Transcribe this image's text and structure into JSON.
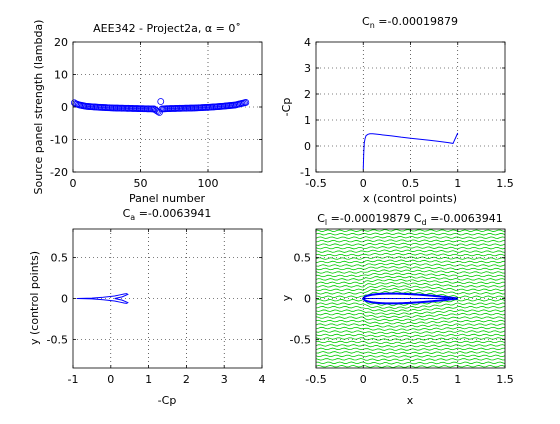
{
  "chart_data": [
    {
      "type": "scatter",
      "title": "AEE342 - Project2a, α = 0˚",
      "xlabel": "Panel number",
      "ylabel": "Source panel strength (lambda)",
      "xlim": [
        0,
        140
      ],
      "ylim": [
        -20,
        20
      ],
      "xticks": [
        "0",
        "50",
        "100"
      ],
      "yticks": [
        "-20",
        "-10",
        "0",
        "10",
        "20"
      ],
      "grid": true,
      "marker": "circle",
      "color": "#0000ff",
      "panels": 128,
      "series": [
        {
          "x": [
            1,
            2,
            5,
            10,
            20,
            30,
            40,
            50,
            60,
            64,
            65,
            66,
            70,
            80,
            90,
            100,
            110,
            120,
            124,
            127,
            128
          ],
          "y": [
            1.3,
            1.0,
            0.6,
            0.2,
            -0.1,
            -0.3,
            -0.4,
            -0.5,
            -0.6,
            -1.7,
            1.7,
            -0.6,
            -0.5,
            -0.4,
            -0.3,
            -0.1,
            0.2,
            0.6,
            1.0,
            1.3,
            1.4
          ]
        }
      ]
    },
    {
      "type": "line",
      "title": "C_n =-0.00019879",
      "title_main": "C",
      "title_sub": "n",
      "title_rest": " =-0.00019879",
      "xlabel": "x (control points)",
      "ylabel": "-Cp",
      "xlim": [
        -0.5,
        1.5
      ],
      "ylim": [
        -1,
        4
      ],
      "xticks": [
        "-0.5",
        "0",
        "0.5",
        "1",
        "1.5"
      ],
      "yticks": [
        "-1",
        "0",
        "1",
        "2",
        "3",
        "4"
      ],
      "grid": true,
      "color": "#0000ff",
      "series": [
        {
          "x": [
            1.0,
            0.95,
            0.9,
            0.8,
            0.7,
            0.6,
            0.5,
            0.4,
            0.3,
            0.2,
            0.15,
            0.1,
            0.07,
            0.05,
            0.03,
            0.02,
            0.01,
            0.005,
            0.0
          ],
          "y": [
            0.5,
            0.1,
            0.13,
            0.18,
            0.22,
            0.26,
            0.3,
            0.34,
            0.39,
            0.43,
            0.45,
            0.47,
            0.47,
            0.45,
            0.4,
            0.3,
            0.1,
            -0.3,
            -0.9
          ]
        }
      ]
    },
    {
      "type": "line",
      "title": "C_a =-0.0063941",
      "title_main": "C",
      "title_sub": "a",
      "title_rest": " =-0.0063941",
      "xlabel": "-Cp",
      "ylabel": "y (control points)",
      "xlim": [
        -1,
        4
      ],
      "ylim": [
        -0.85,
        0.85
      ],
      "xticks": [
        "-1",
        "0",
        "1",
        "2",
        "3",
        "4"
      ],
      "yticks": [
        "-0.5",
        "0",
        "0.5"
      ],
      "grid": true,
      "color": "#0000ff",
      "series": [
        {
          "x": [
            -0.9,
            -0.5,
            -0.2,
            0.1,
            0.25,
            0.35,
            0.42,
            0.45,
            0.3,
            0.1
          ],
          "y": [
            0.0,
            0.005,
            0.015,
            0.03,
            0.045,
            0.055,
            0.06,
            0.05,
            0.02,
            0.0
          ]
        },
        {
          "x": [
            -0.9,
            -0.5,
            -0.2,
            0.1,
            0.25,
            0.35,
            0.42,
            0.45,
            0.3,
            0.1
          ],
          "y": [
            0.0,
            -0.005,
            -0.015,
            -0.03,
            -0.045,
            -0.055,
            -0.06,
            -0.05,
            -0.02,
            0.0
          ]
        }
      ]
    },
    {
      "type": "line",
      "title": "C_l =-0.00019879 C_d =-0.0063941",
      "title_main": "C",
      "title_sub": "l",
      "title_mid": " =-0.00019879 C",
      "title_sub2": "d",
      "title_rest": " =-0.0063941",
      "xlabel": "x",
      "ylabel": "y",
      "xlim": [
        -0.5,
        1.5
      ],
      "ylim": [
        -0.85,
        0.85
      ],
      "xticks": [
        "-0.5",
        "0",
        "0.5",
        "1",
        "1.5"
      ],
      "yticks": [
        "-0.5",
        "0",
        "0.5"
      ],
      "grid": true,
      "streamline_color": "#00cc00",
      "airfoil_color": "#0000ff",
      "streamline_count": 40,
      "airfoil_thickness": 0.12
    }
  ]
}
